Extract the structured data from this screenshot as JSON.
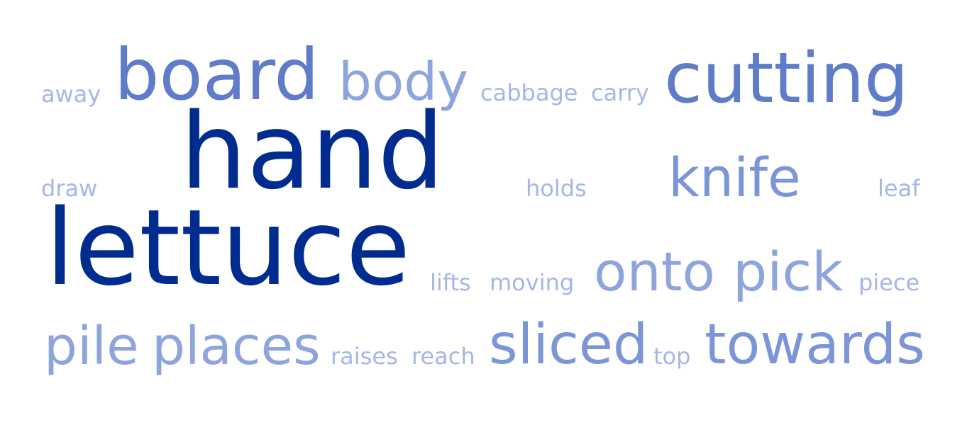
{
  "word_cloud": {
    "words": [
      {
        "text": "away",
        "weight": 1,
        "color": "#a6b6e6"
      },
      {
        "text": "board",
        "weight": 4,
        "color": "#5f7cc9"
      },
      {
        "text": "body",
        "weight": 3,
        "color": "#8ea4dc"
      },
      {
        "text": "cabbage",
        "weight": 1,
        "color": "#a6b6e6"
      },
      {
        "text": "carry",
        "weight": 1,
        "color": "#a6b6e6"
      },
      {
        "text": "cutting",
        "weight": 4,
        "color": "#5f7cc9"
      },
      {
        "text": "hand",
        "weight": 6,
        "color": "#002b8f"
      },
      {
        "text": "draw",
        "weight": 1,
        "color": "#a6b6e6"
      },
      {
        "text": "holds",
        "weight": 1,
        "color": "#a6b6e6"
      },
      {
        "text": "knife",
        "weight": 3,
        "color": "#7c95d6"
      },
      {
        "text": "leaf",
        "weight": 1,
        "color": "#a6b6e6"
      },
      {
        "text": "lettuce",
        "weight": 6,
        "color": "#002b8f"
      },
      {
        "text": "lifts",
        "weight": 1,
        "color": "#a6b6e6"
      },
      {
        "text": "moving",
        "weight": 1,
        "color": "#a6b6e6"
      },
      {
        "text": "onto",
        "weight": 3,
        "color": "#8ea4dc"
      },
      {
        "text": "pick",
        "weight": 3,
        "color": "#8ea4dc"
      },
      {
        "text": "piece",
        "weight": 1,
        "color": "#a6b6e6"
      },
      {
        "text": "pile",
        "weight": 3,
        "color": "#8ea4dc"
      },
      {
        "text": "places",
        "weight": 3,
        "color": "#8ea4dc"
      },
      {
        "text": "raises",
        "weight": 1,
        "color": "#a6b6e6"
      },
      {
        "text": "reach",
        "weight": 1,
        "color": "#a6b6e6"
      },
      {
        "text": "sliced",
        "weight": 3,
        "color": "#7c95d6"
      },
      {
        "text": "top",
        "weight": 1,
        "color": "#a6b6e6"
      },
      {
        "text": "towards",
        "weight": 3,
        "color": "#7c95d6"
      }
    ]
  }
}
